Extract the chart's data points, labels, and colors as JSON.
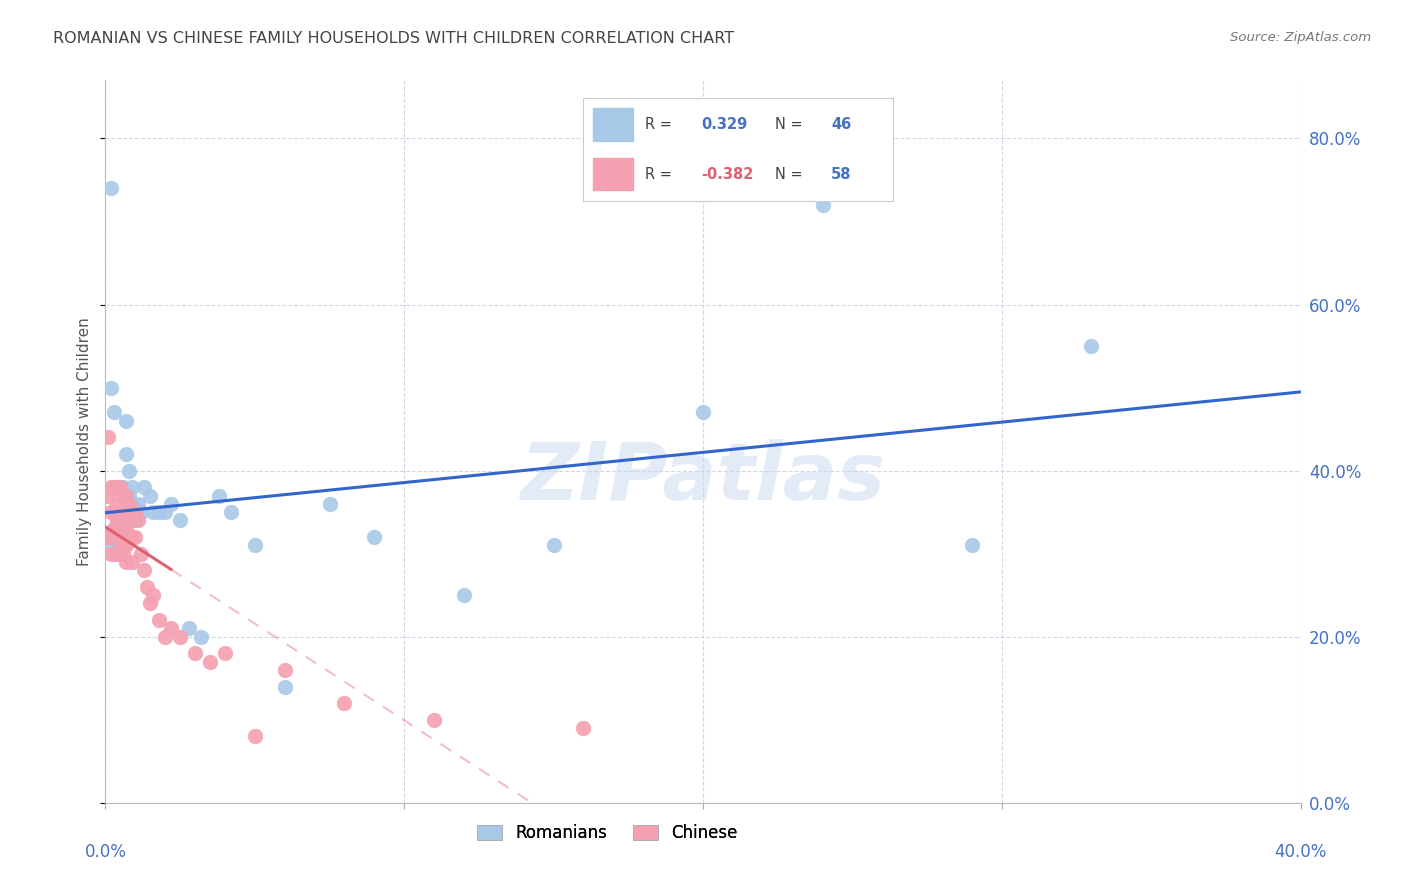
{
  "title": "ROMANIAN VS CHINESE FAMILY HOUSEHOLDS WITH CHILDREN CORRELATION CHART",
  "source": "Source: ZipAtlas.com",
  "ylabel": "Family Households with Children",
  "watermark": "ZIPatlas",
  "xlim": [
    0.0,
    0.4
  ],
  "ylim": [
    0.0,
    0.87
  ],
  "yticks": [
    0.0,
    0.2,
    0.4,
    0.6,
    0.8
  ],
  "xticks": [
    0.0,
    0.1,
    0.2,
    0.3,
    0.4
  ],
  "romanian_color": "#a8c8e8",
  "chinese_color": "#f4a0b0",
  "romanian_line_color": "#3366cc",
  "chinese_line_color": "#e06070",
  "romanian_R": 0.329,
  "romanian_N": 46,
  "chinese_R": -0.382,
  "chinese_N": 58,
  "romanian_x": [
    0.001,
    0.002,
    0.002,
    0.003,
    0.003,
    0.003,
    0.004,
    0.004,
    0.005,
    0.005,
    0.005,
    0.005,
    0.006,
    0.006,
    0.006,
    0.007,
    0.007,
    0.007,
    0.008,
    0.008,
    0.009,
    0.009,
    0.01,
    0.011,
    0.012,
    0.013,
    0.015,
    0.016,
    0.018,
    0.02,
    0.022,
    0.025,
    0.028,
    0.032,
    0.038,
    0.042,
    0.05,
    0.06,
    0.075,
    0.09,
    0.12,
    0.15,
    0.2,
    0.24,
    0.29,
    0.33
  ],
  "romanian_y": [
    0.31,
    0.5,
    0.74,
    0.47,
    0.33,
    0.32,
    0.34,
    0.32,
    0.33,
    0.32,
    0.3,
    0.31,
    0.35,
    0.38,
    0.33,
    0.42,
    0.46,
    0.34,
    0.4,
    0.37,
    0.38,
    0.36,
    0.34,
    0.36,
    0.35,
    0.38,
    0.37,
    0.35,
    0.35,
    0.35,
    0.36,
    0.34,
    0.21,
    0.2,
    0.37,
    0.35,
    0.31,
    0.14,
    0.36,
    0.32,
    0.25,
    0.31,
    0.47,
    0.72,
    0.31,
    0.55
  ],
  "chinese_x": [
    0.001,
    0.001,
    0.001,
    0.002,
    0.002,
    0.002,
    0.002,
    0.003,
    0.003,
    0.003,
    0.003,
    0.003,
    0.004,
    0.004,
    0.004,
    0.004,
    0.004,
    0.005,
    0.005,
    0.005,
    0.005,
    0.005,
    0.006,
    0.006,
    0.006,
    0.006,
    0.006,
    0.007,
    0.007,
    0.007,
    0.007,
    0.007,
    0.008,
    0.008,
    0.008,
    0.009,
    0.009,
    0.009,
    0.01,
    0.01,
    0.011,
    0.012,
    0.013,
    0.014,
    0.015,
    0.016,
    0.018,
    0.02,
    0.022,
    0.025,
    0.03,
    0.035,
    0.04,
    0.05,
    0.06,
    0.08,
    0.11,
    0.16
  ],
  "chinese_y": [
    0.44,
    0.37,
    0.32,
    0.38,
    0.35,
    0.32,
    0.3,
    0.38,
    0.35,
    0.33,
    0.32,
    0.3,
    0.38,
    0.36,
    0.34,
    0.32,
    0.3,
    0.38,
    0.35,
    0.33,
    0.32,
    0.3,
    0.37,
    0.35,
    0.33,
    0.31,
    0.3,
    0.37,
    0.35,
    0.33,
    0.31,
    0.29,
    0.36,
    0.34,
    0.32,
    0.35,
    0.32,
    0.29,
    0.35,
    0.32,
    0.34,
    0.3,
    0.28,
    0.26,
    0.24,
    0.25,
    0.22,
    0.2,
    0.21,
    0.2,
    0.18,
    0.17,
    0.18,
    0.08,
    0.16,
    0.12,
    0.1,
    0.09
  ],
  "background_color": "#ffffff",
  "grid_color": "#d0d8e8",
  "title_color": "#444444"
}
